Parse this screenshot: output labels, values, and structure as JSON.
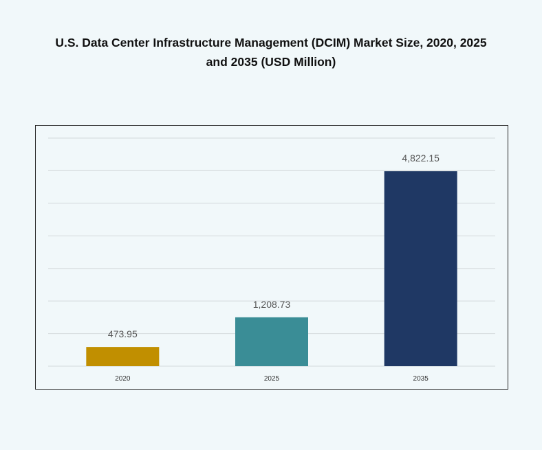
{
  "chart_data": {
    "type": "bar",
    "title": "U.S. Data Center Infrastructure  Management (DCIM) Market Size, 2020, 2025\nand 2035 (USD Million)",
    "categories": [
      "2020",
      "2025",
      "2035"
    ],
    "values": [
      473.95,
      1208.73,
      4822.15
    ],
    "data_labels": [
      "473.95",
      "1,208.73",
      "4,822.15"
    ],
    "colors": [
      "#c18f00",
      "#3a8d96",
      "#1f3864"
    ],
    "xlabel": "",
    "ylabel": "",
    "ylim": [
      0,
      5640
    ],
    "y_axis_visible": false,
    "grid": true,
    "legend": "none"
  }
}
